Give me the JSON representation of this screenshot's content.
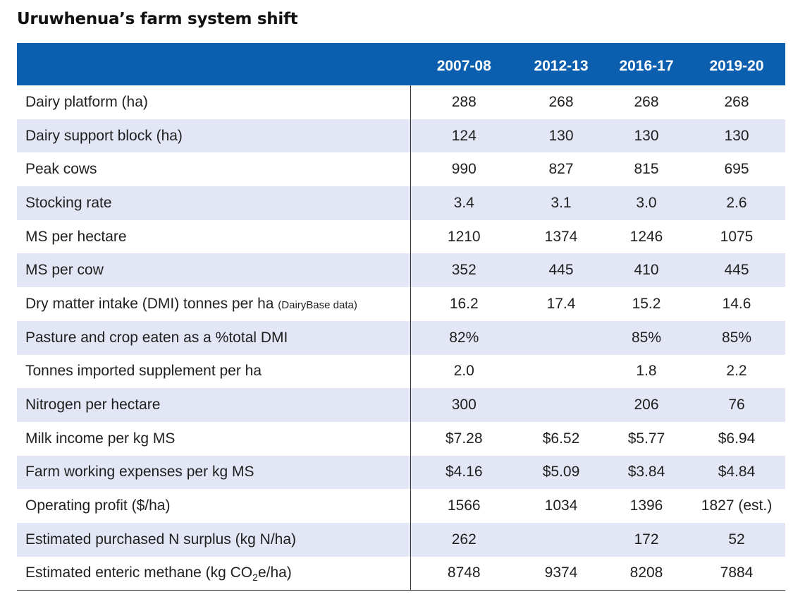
{
  "title": "Uruwhenua’s farm system shift",
  "header": {
    "label": "",
    "years": [
      "2007-08",
      "2012-13",
      "2016-17",
      "2019-20"
    ]
  },
  "rows": [
    {
      "label": "Dairy platform (ha)",
      "values": [
        "288",
        "268",
        "268",
        "268"
      ]
    },
    {
      "label": "Dairy support block (ha)",
      "values": [
        "124",
        "130",
        "130",
        "130"
      ]
    },
    {
      "label": "Peak cows",
      "values": [
        "990",
        "827",
        "815",
        "695"
      ]
    },
    {
      "label": "Stocking rate",
      "values": [
        "3.4",
        "3.1",
        "3.0",
        "2.6"
      ]
    },
    {
      "label": "MS per hectare",
      "values": [
        "1210",
        "1374",
        "1246",
        "1075"
      ]
    },
    {
      "label": "MS per cow",
      "values": [
        "352",
        "445",
        "410",
        "445"
      ]
    },
    {
      "label": "Dry matter intake (DMI) tonnes per ha ",
      "note": "(DairyBase data)",
      "values": [
        "16.2",
        "17.4",
        "15.2",
        "14.6"
      ]
    },
    {
      "label": "Pasture and crop eaten as a %total DMI",
      "values": [
        "82%",
        "",
        "85%",
        "85%"
      ]
    },
    {
      "label": "Tonnes imported supplement per ha",
      "values": [
        "2.0",
        "",
        "1.8",
        "2.2"
      ]
    },
    {
      "label": "Nitrogen per hectare",
      "values": [
        "300",
        "",
        "206",
        "76"
      ]
    },
    {
      "label": "Milk income per kg MS",
      "values": [
        "$7.28",
        "$6.52",
        "$5.77",
        "$6.94"
      ]
    },
    {
      "label": "Farm working expenses per kg MS",
      "values": [
        "$4.16",
        "$5.09",
        "$3.84",
        "$4.84"
      ]
    },
    {
      "label": "Operating profit ($/ha)",
      "values": [
        "1566",
        "1034",
        "1396",
        "1827 (est.)"
      ]
    },
    {
      "label": "Estimated purchased N surplus (kg N/ha)",
      "values": [
        "262",
        "",
        "172",
        "52"
      ]
    },
    {
      "label": "Estimated enteric methane (kg CO",
      "label_sub": "2",
      "label_tail": "e/ha)",
      "values": [
        "8748",
        "9374",
        "8208",
        "7884"
      ]
    }
  ]
}
